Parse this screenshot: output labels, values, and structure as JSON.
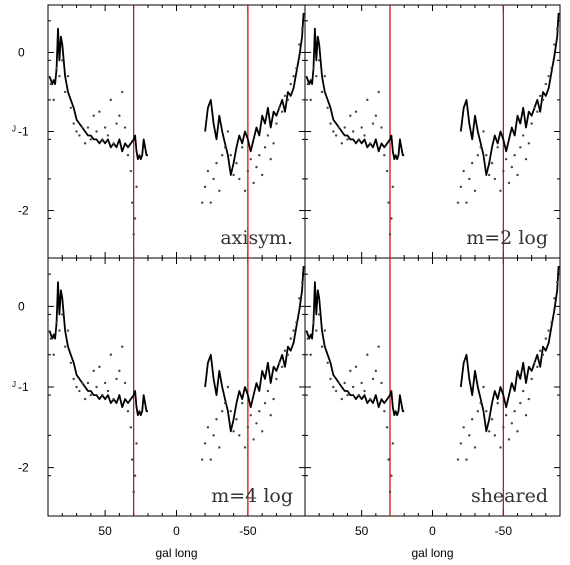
{
  "chart_data": {
    "type": "line",
    "layout": "2x2 panels, shared axes",
    "xaxis": {
      "label": "gal long",
      "ticks": [
        50,
        0,
        -50
      ],
      "tick_labels": [
        "50",
        "0",
        "-50"
      ],
      "range": [
        90,
        -90
      ],
      "reversed": true
    },
    "yaxis": {
      "label": "J",
      "ticks": [
        -2,
        -1,
        0
      ],
      "tick_labels": [
        "-2",
        "-1",
        "0"
      ],
      "range": [
        0.6,
        -2.6
      ],
      "reversed": true
    },
    "vertical_markers": {
      "x": [
        30,
        -50
      ],
      "color": "#cc0000"
    },
    "colors": {
      "model": "#000000",
      "observed": "#444444",
      "marker": "#cc0000",
      "frame": "#000000"
    },
    "panels": [
      {
        "label": "axisym.",
        "position": "top-left",
        "show_xlabel": false
      },
      {
        "label": "m=2 log",
        "position": "top-right",
        "show_xlabel": false
      },
      {
        "label": "m=4 log",
        "position": "bottom-left",
        "show_xlabel": true
      },
      {
        "label": "sheared",
        "position": "bottom-right",
        "show_xlabel": true
      }
    ],
    "series": [
      {
        "style": "solid",
        "model": "axisym.",
        "x": [
          89,
          88,
          87,
          86,
          85,
          84,
          83,
          82,
          81,
          80,
          78,
          76,
          74,
          72,
          70,
          68,
          66,
          64,
          62,
          60,
          58,
          56,
          54,
          52,
          50,
          48,
          46,
          44,
          42,
          40,
          38,
          36,
          34,
          32,
          30,
          29,
          28,
          27,
          26,
          25,
          24,
          23,
          22,
          21,
          20
        ],
        "y": [
          -0.3,
          -0.35,
          -0.4,
          -0.35,
          -0.4,
          -0.2,
          0.3,
          -0.1,
          0.2,
          0.1,
          -0.3,
          -0.5,
          -0.6,
          -0.7,
          -0.85,
          -0.9,
          -0.95,
          -1.0,
          -1.05,
          -1.05,
          -1.1,
          -1.1,
          -1.15,
          -1.1,
          -1.15,
          -1.1,
          -1.2,
          -1.15,
          -1.2,
          -1.1,
          -1.25,
          -1.15,
          -1.2,
          -1.15,
          -1.1,
          -1.05,
          -1.25,
          -1.35,
          -1.3,
          -1.35,
          -1.3,
          -1.1,
          -1.2,
          -1.3,
          -1.3
        ]
      },
      {
        "style": "solid",
        "model": "axisym.",
        "x": [
          -20,
          -22,
          -24,
          -26,
          -28,
          -30,
          -32,
          -34,
          -36,
          -38,
          -40,
          -42,
          -44,
          -46,
          -48,
          -50,
          -52,
          -54,
          -56,
          -58,
          -60,
          -62,
          -64,
          -66,
          -68,
          -70,
          -72,
          -74,
          -76,
          -78,
          -80,
          -82,
          -84,
          -86,
          -88,
          -89
        ],
        "y": [
          -1.0,
          -0.7,
          -0.6,
          -0.9,
          -1.1,
          -0.8,
          -1.0,
          -1.15,
          -1.3,
          -1.55,
          -1.4,
          -1.2,
          -1.05,
          -1.15,
          -1.0,
          -1.1,
          -1.25,
          -1.1,
          -0.95,
          -1.05,
          -0.8,
          -0.9,
          -0.7,
          -0.95,
          -0.75,
          -0.8,
          -0.7,
          -0.6,
          -0.75,
          -0.5,
          -0.55,
          -0.45,
          -0.25,
          -0.05,
          0.2,
          0.5
        ]
      },
      {
        "style": "dots",
        "model": "observed",
        "x": [
          88,
          86,
          84,
          82,
          80,
          78,
          76,
          74,
          72,
          70,
          68,
          66,
          64,
          62,
          60,
          58,
          56,
          54,
          52,
          50,
          48,
          46,
          44,
          42,
          40,
          38,
          36,
          34,
          32,
          31,
          30,
          29,
          28
        ],
        "y": [
          -0.4,
          -0.6,
          -0.2,
          -0.3,
          -0.1,
          -0.5,
          -0.3,
          -0.7,
          -0.9,
          -1.0,
          -1.05,
          -0.95,
          -1.15,
          -0.95,
          -1.1,
          -0.8,
          -1.0,
          -0.75,
          -1.1,
          -0.95,
          -1.05,
          -0.6,
          -1.15,
          -0.9,
          -0.8,
          -0.5,
          -0.95,
          -1.3,
          -1.5,
          -1.9,
          -2.3,
          -2.1,
          -1.7
        ]
      },
      {
        "style": "dots",
        "model": "observed",
        "x": [
          -18,
          -20,
          -22,
          -24,
          -26,
          -28,
          -30,
          -32,
          -34,
          -36,
          -38,
          -40,
          -42,
          -44,
          -46,
          -48,
          -50,
          -52,
          -54,
          -56,
          -58,
          -60,
          -62,
          -64,
          -66,
          -68,
          -70,
          -72,
          -74,
          -76,
          -78,
          -80,
          -82,
          -84,
          -86,
          -88
        ],
        "y": [
          -1.9,
          -1.7,
          -1.5,
          -1.9,
          -1.6,
          -1.4,
          -1.75,
          -1.3,
          -1.2,
          -1.0,
          -1.3,
          -1.55,
          -1.4,
          -1.6,
          -1.2,
          -1.75,
          -1.5,
          -1.35,
          -1.65,
          -1.45,
          -1.3,
          -1.55,
          -1.2,
          -1.05,
          -1.35,
          -1.15,
          -0.9,
          -0.7,
          -0.75,
          -0.55,
          -0.6,
          -0.4,
          -0.3,
          -0.2,
          0.1,
          0.3
        ]
      }
    ]
  }
}
